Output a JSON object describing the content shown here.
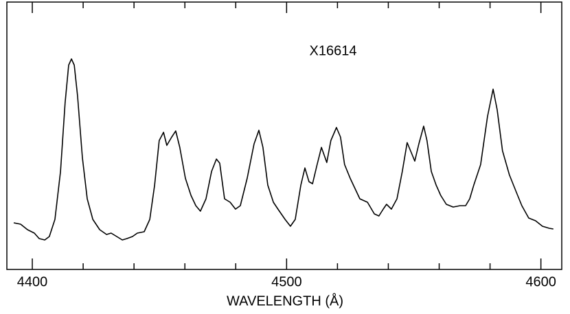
{
  "chart_data": {
    "type": "line",
    "annotation": "X16614",
    "xlabel": "WAVELENGTH (Å)",
    "xlim": [
      4390,
      4608.2
    ],
    "ylim": [
      0,
      390
    ],
    "xticks": [
      4400,
      4500,
      4600
    ],
    "minor_xticks": [
      4420,
      4440,
      4460,
      4480,
      4520,
      4540,
      4560,
      4580
    ],
    "color": "#000000",
    "x": [
      4392.7,
      4395.4,
      4398.1,
      4400.8,
      4402.7,
      4404.9,
      4406.7,
      4408.9,
      4411.1,
      4412.9,
      4414.3,
      4415.4,
      4416.5,
      4417.8,
      4419.7,
      4421.6,
      4423.8,
      4426.5,
      4429.2,
      4431.0,
      4433.2,
      4435.4,
      4437.2,
      4439.4,
      4441.3,
      4444.0,
      4446.2,
      4448.1,
      4449.9,
      4451.6,
      4452.9,
      4454.8,
      4456.4,
      4458.0,
      4460.2,
      4462.4,
      4464.3,
      4466.1,
      4468.3,
      4470.5,
      4472.4,
      4473.7,
      4475.6,
      4477.8,
      4479.9,
      4481.8,
      4484.5,
      4487.2,
      4489.1,
      4490.7,
      4492.6,
      4494.8,
      4496.6,
      4499.4,
      4501.5,
      4503.4,
      4505.6,
      4507.2,
      4508.8,
      4510.2,
      4512.0,
      4513.7,
      4515.8,
      4517.4,
      4519.6,
      4521.2,
      4522.8,
      4525.0,
      4526.9,
      4528.8,
      4531.8,
      4534.5,
      4536.3,
      4538.0,
      4539.3,
      4541.2,
      4543.4,
      4545.5,
      4547.4,
      4549.3,
      4550.4,
      4552.0,
      4553.9,
      4555.2,
      4556.9,
      4558.8,
      4560.6,
      4562.8,
      4565.5,
      4568.2,
      4570.4,
      4572.0,
      4573.6,
      4576.3,
      4579.0,
      4581.2,
      4582.8,
      4584.9,
      4587.6,
      4590.3,
      4592.5,
      4595.2,
      4597.9,
      4600.6,
      4603.3,
      4604.9
    ],
    "values": [
      68,
      66,
      58,
      53,
      45,
      43,
      48,
      73,
      143,
      243,
      298,
      307,
      298,
      253,
      163,
      103,
      73,
      58,
      51,
      53,
      48,
      43,
      45,
      48,
      53,
      55,
      73,
      123,
      188,
      200,
      181,
      193,
      202,
      178,
      133,
      108,
      93,
      85,
      103,
      143,
      161,
      155,
      103,
      98,
      88,
      93,
      133,
      183,
      203,
      178,
      123,
      98,
      88,
      73,
      63,
      73,
      123,
      148,
      128,
      125,
      153,
      178,
      156,
      188,
      207,
      193,
      153,
      133,
      118,
      103,
      98,
      81,
      78,
      88,
      95,
      88,
      103,
      143,
      185,
      168,
      158,
      183,
      209,
      188,
      143,
      123,
      108,
      95,
      91,
      93,
      93,
      103,
      123,
      153,
      223,
      263,
      233,
      173,
      138,
      113,
      93,
      75,
      71,
      63,
      60,
      59
    ]
  }
}
